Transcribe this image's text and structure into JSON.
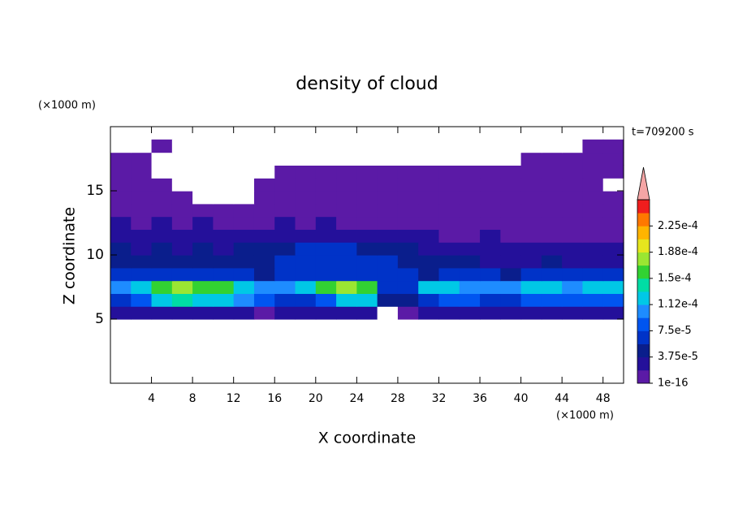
{
  "chart_data": {
    "type": "contour",
    "title": "density of cloud",
    "xlabel": "X coordinate",
    "ylabel": "Z coordinate",
    "x_unit": "(×1000 m)",
    "y_unit": "(×1000 m)",
    "annotation": "t=709200 s",
    "xlim": [
      0,
      50
    ],
    "ylim": [
      0,
      20
    ],
    "xticks": [
      4,
      8,
      12,
      16,
      20,
      24,
      28,
      32,
      36,
      40,
      44,
      48
    ],
    "yticks": [
      5,
      10,
      15
    ],
    "x": [
      1,
      3,
      5,
      7,
      9,
      11,
      13,
      15,
      17,
      19,
      21,
      23,
      25,
      27,
      29,
      31,
      33,
      35,
      37,
      39,
      41,
      43,
      45,
      47,
      49
    ],
    "z": [
      5.5,
      6.5,
      7.5,
      8.5,
      9.5,
      10.5,
      11.5,
      12.5,
      13.5,
      14.5,
      15.5,
      16.5,
      17.5,
      18.5
    ],
    "values": [
      [
        2.5e-05,
        2.5e-05,
        2.5e-05,
        2.5e-05,
        2.5e-05,
        2.5e-05,
        2.5e-05,
        5e-06,
        2.5e-05,
        2.5e-05,
        2.5e-05,
        2.5e-05,
        2.5e-05,
        0,
        5e-06,
        2.5e-05,
        2.5e-05,
        2.5e-05,
        2.5e-05,
        2.5e-05,
        2.5e-05,
        2.5e-05,
        2.5e-05,
        2.5e-05,
        2.5e-05
      ],
      [
        6e-05,
        8e-05,
        0.00012,
        0.00014,
        0.00012,
        0.00012,
        0.0001,
        8e-05,
        6e-05,
        6e-05,
        8e-05,
        0.00012,
        0.00012,
        4e-05,
        4e-05,
        6e-05,
        8e-05,
        8e-05,
        6e-05,
        6e-05,
        8e-05,
        8e-05,
        8e-05,
        8e-05,
        8e-05
      ],
      [
        0.0001,
        0.00012,
        0.00016,
        0.00018,
        0.00016,
        0.00016,
        0.00012,
        0.0001,
        0.0001,
        0.00012,
        0.00016,
        0.00018,
        0.00016,
        6e-05,
        6e-05,
        0.00012,
        0.00012,
        0.0001,
        0.0001,
        0.0001,
        0.00012,
        0.00012,
        0.0001,
        0.00012,
        0.00012
      ],
      [
        6e-05,
        6e-05,
        6e-05,
        6e-05,
        6e-05,
        6e-05,
        6e-05,
        4e-05,
        6e-05,
        6e-05,
        6e-05,
        6e-05,
        6e-05,
        6e-05,
        6e-05,
        4e-05,
        6e-05,
        6e-05,
        6e-05,
        4e-05,
        6e-05,
        6e-05,
        6e-05,
        6e-05,
        6e-05
      ],
      [
        4e-05,
        4e-05,
        4e-05,
        4e-05,
        4e-05,
        4e-05,
        4e-05,
        4e-05,
        6e-05,
        6e-05,
        6e-05,
        6e-05,
        6e-05,
        6e-05,
        4e-05,
        4e-05,
        4e-05,
        4e-05,
        2.5e-05,
        2.5e-05,
        2.5e-05,
        4e-05,
        2.5e-05,
        2.5e-05,
        2.5e-05
      ],
      [
        4e-05,
        2.5e-05,
        4e-05,
        2.5e-05,
        4e-05,
        2.5e-05,
        4e-05,
        4e-05,
        4e-05,
        6e-05,
        6e-05,
        6e-05,
        4e-05,
        4e-05,
        4e-05,
        2.5e-05,
        2.5e-05,
        2.5e-05,
        2.5e-05,
        2.5e-05,
        2.5e-05,
        2.5e-05,
        2.5e-05,
        2.5e-05,
        2.5e-05
      ],
      [
        2.5e-05,
        2.5e-05,
        2.5e-05,
        2.5e-05,
        2.5e-05,
        2.5e-05,
        2.5e-05,
        2.5e-05,
        2.5e-05,
        2.5e-05,
        2.5e-05,
        2.5e-05,
        2.5e-05,
        2.5e-05,
        2.5e-05,
        2.5e-05,
        5e-06,
        5e-06,
        2.5e-05,
        5e-06,
        5e-06,
        5e-06,
        5e-06,
        5e-06,
        5e-06
      ],
      [
        2.5e-05,
        5e-06,
        2.5e-05,
        5e-06,
        2.5e-05,
        5e-06,
        5e-06,
        5e-06,
        2.5e-05,
        5e-06,
        2.5e-05,
        5e-06,
        5e-06,
        5e-06,
        5e-06,
        5e-06,
        5e-06,
        5e-06,
        5e-06,
        5e-06,
        5e-06,
        5e-06,
        5e-06,
        5e-06,
        5e-06
      ],
      [
        5e-06,
        5e-06,
        5e-06,
        5e-06,
        5e-06,
        5e-06,
        5e-06,
        5e-06,
        5e-06,
        5e-06,
        5e-06,
        5e-06,
        5e-06,
        5e-06,
        5e-06,
        5e-06,
        5e-06,
        5e-06,
        5e-06,
        5e-06,
        5e-06,
        5e-06,
        5e-06,
        5e-06,
        5e-06
      ],
      [
        5e-06,
        5e-06,
        5e-06,
        5e-06,
        0,
        0,
        0,
        5e-06,
        5e-06,
        5e-06,
        5e-06,
        5e-06,
        5e-06,
        5e-06,
        5e-06,
        5e-06,
        5e-06,
        5e-06,
        5e-06,
        5e-06,
        5e-06,
        5e-06,
        5e-06,
        5e-06,
        5e-06
      ],
      [
        5e-06,
        5e-06,
        5e-06,
        0,
        0,
        0,
        0,
        5e-06,
        5e-06,
        5e-06,
        5e-06,
        5e-06,
        5e-06,
        5e-06,
        5e-06,
        5e-06,
        5e-06,
        5e-06,
        5e-06,
        5e-06,
        5e-06,
        5e-06,
        5e-06,
        5e-06,
        0
      ],
      [
        5e-06,
        5e-06,
        0,
        0,
        0,
        0,
        0,
        0,
        5e-06,
        5e-06,
        5e-06,
        5e-06,
        5e-06,
        5e-06,
        5e-06,
        5e-06,
        5e-06,
        5e-06,
        5e-06,
        5e-06,
        5e-06,
        5e-06,
        5e-06,
        5e-06,
        5e-06
      ],
      [
        5e-06,
        5e-06,
        0,
        0,
        0,
        0,
        0,
        0,
        0,
        0,
        0,
        0,
        0,
        0,
        0,
        0,
        0,
        0,
        0,
        0,
        5e-06,
        5e-06,
        5e-06,
        5e-06,
        5e-06
      ],
      [
        0,
        0,
        5e-06,
        0,
        0,
        0,
        0,
        0,
        0,
        0,
        0,
        0,
        0,
        0,
        0,
        0,
        0,
        0,
        0,
        0,
        0,
        0,
        0,
        5e-06,
        5e-06
      ]
    ],
    "clim": [
      1e-16,
      0.0002625
    ],
    "colors": [
      "#5b1aa6",
      "#24109a",
      "#0a1e8c",
      "#0033c8",
      "#0055f0",
      "#1e8cff",
      "#00c8e6",
      "#00dca5",
      "#32d232",
      "#9be632",
      "#e6e61e",
      "#ffb400",
      "#ff7800",
      "#f01e1e"
    ],
    "extend_color": "#f5a5a5",
    "cticks": [
      {
        "value": 1e-16,
        "label": "1e-16"
      },
      {
        "value": 3.75e-05,
        "label": "3.75e-5"
      },
      {
        "value": 7.5e-05,
        "label": "7.5e-5"
      },
      {
        "value": 0.0001125,
        "label": "1.12e-4"
      },
      {
        "value": 0.00015,
        "label": "1.5e-4"
      },
      {
        "value": 0.0001875,
        "label": "1.88e-4"
      },
      {
        "value": 0.000225,
        "label": "2.25e-4"
      }
    ]
  }
}
